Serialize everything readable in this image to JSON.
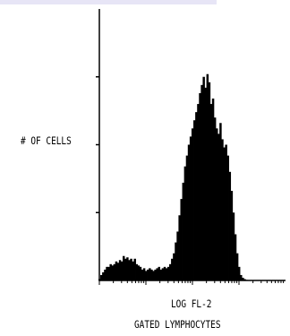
{
  "colors": {
    "fill": "#000000",
    "band": "#e7e5f6",
    "background": "#ffffff"
  },
  "chart_data": {
    "type": "area",
    "title": "",
    "xlabel": "LOG FL-2",
    "xlabel2": "GATED LYMPHOCYTES",
    "ylabel": "# OF CELLS",
    "x_scale": "log",
    "xlim": [
      0,
      1
    ],
    "ylim": [
      0,
      1
    ],
    "grid": false,
    "legend": "none",
    "x": [
      0.0,
      0.01,
      0.02,
      0.03,
      0.04,
      0.05,
      0.06,
      0.07,
      0.08,
      0.09,
      0.1,
      0.11,
      0.12,
      0.13,
      0.14,
      0.15,
      0.16,
      0.17,
      0.18,
      0.19,
      0.2,
      0.21,
      0.22,
      0.23,
      0.24,
      0.25,
      0.26,
      0.27,
      0.28,
      0.29,
      0.3,
      0.31,
      0.32,
      0.33,
      0.34,
      0.35,
      0.36,
      0.37,
      0.38,
      0.39,
      0.4,
      0.41,
      0.42,
      0.43,
      0.44,
      0.45,
      0.46,
      0.47,
      0.48,
      0.49,
      0.5,
      0.51,
      0.52,
      0.53,
      0.54,
      0.55,
      0.56,
      0.57,
      0.58,
      0.59,
      0.6,
      0.61,
      0.62,
      0.63,
      0.64,
      0.65,
      0.66,
      0.67,
      0.68,
      0.69,
      0.7,
      0.71,
      0.72,
      0.73,
      0.74,
      0.75,
      0.76,
      0.77,
      0.78,
      0.79,
      0.8
    ],
    "y": [
      0.005,
      0.02,
      0.03,
      0.04,
      0.05,
      0.05,
      0.06,
      0.055,
      0.06,
      0.07,
      0.065,
      0.075,
      0.07,
      0.09,
      0.08,
      0.085,
      0.075,
      0.08,
      0.07,
      0.08,
      0.06,
      0.055,
      0.05,
      0.04,
      0.045,
      0.035,
      0.04,
      0.045,
      0.04,
      0.035,
      0.04,
      0.045,
      0.05,
      0.04,
      0.045,
      0.05,
      0.045,
      0.05,
      0.06,
      0.08,
      0.1,
      0.14,
      0.18,
      0.24,
      0.3,
      0.36,
      0.42,
      0.46,
      0.5,
      0.53,
      0.56,
      0.59,
      0.62,
      0.65,
      0.69,
      0.72,
      0.75,
      0.71,
      0.76,
      0.73,
      0.65,
      0.67,
      0.6,
      0.56,
      0.54,
      0.58,
      0.52,
      0.49,
      0.5,
      0.46,
      0.4,
      0.33,
      0.25,
      0.17,
      0.1,
      0.05,
      0.02,
      0.01,
      0.005,
      0.002,
      0.0
    ]
  }
}
